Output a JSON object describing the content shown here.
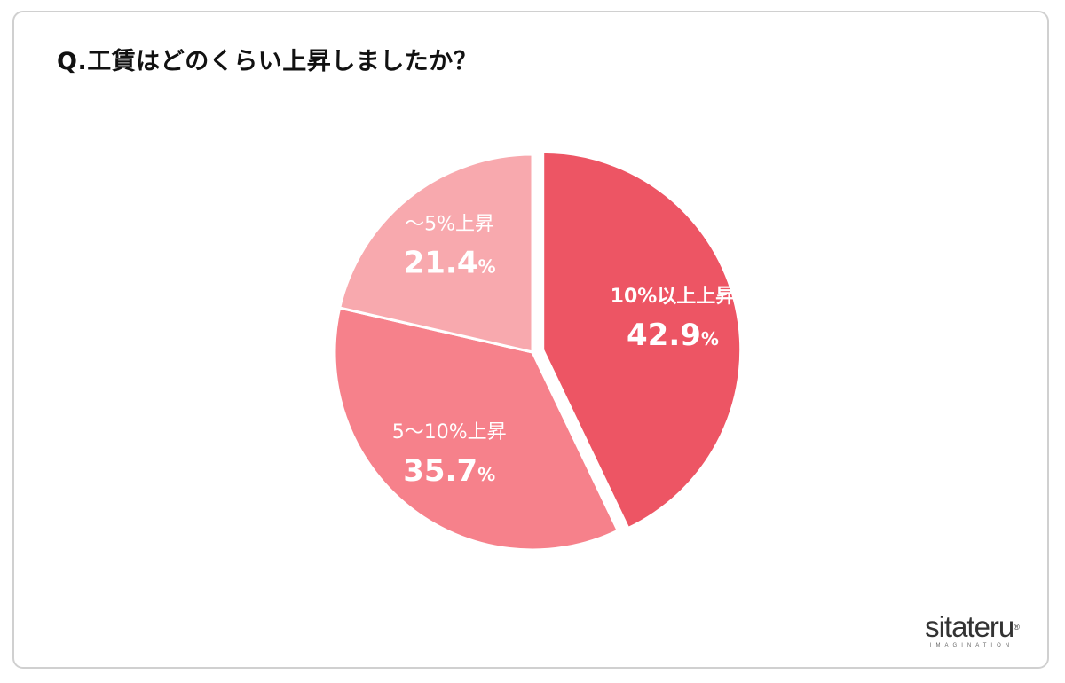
{
  "title": "Q.工賃はどのくらい上昇しましたか？",
  "chart_data": {
    "type": "pie",
    "title": "Q.工賃はどのくらい上昇しましたか？",
    "slices": [
      {
        "name": "10%以上上昇",
        "value": 42.9,
        "label": "42.9",
        "unit": "%",
        "color": "#ed5564",
        "exploded": true
      },
      {
        "name": "5〜10%上昇",
        "value": 35.7,
        "label": "35.7",
        "unit": "%",
        "color": "#f6818b",
        "exploded": false
      },
      {
        "name": "〜5%上昇",
        "value": 21.4,
        "label": "21.4",
        "unit": "%",
        "color": "#f8a9ae",
        "exploded": false
      }
    ],
    "start": "12 o'clock",
    "direction": "clockwise",
    "legend": "none"
  },
  "logo": {
    "wordmark": "sitateru",
    "tagline": "IMAGINATION",
    "registered": "®"
  }
}
